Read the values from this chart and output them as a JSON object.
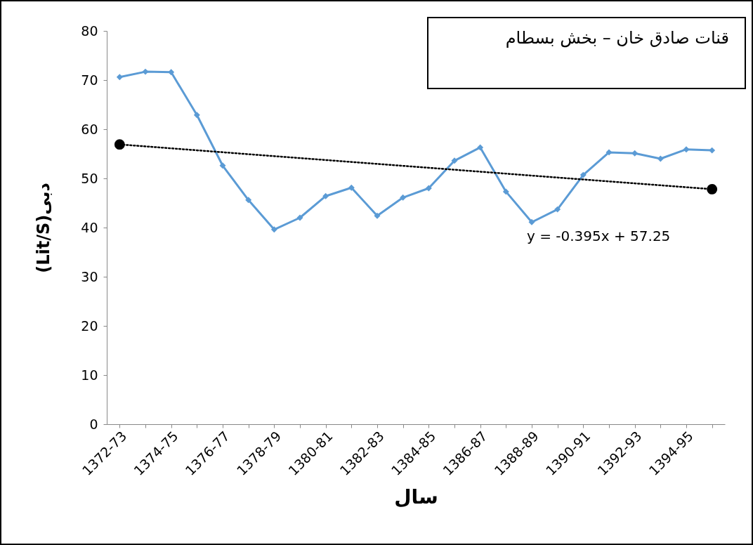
{
  "chart_data": {
    "type": "line",
    "title": "قنات صادق خان – بخش بسطام",
    "xlabel": "سال",
    "ylabel": "(Lit/S)دبی",
    "categories": [
      "1372-73",
      null,
      "1374-75",
      null,
      "1376-77",
      null,
      "1378-79",
      null,
      "1380-81",
      null,
      "1382-83",
      null,
      "1384-85",
      null,
      "1386-87",
      null,
      "1388-89",
      null,
      "1390-91",
      null,
      "1392-93",
      null,
      "1394-95",
      null
    ],
    "series": [
      {
        "color": "#5b9bd5",
        "marker": "diamond",
        "line_style": "solid",
        "values": [
          70.6,
          71.7,
          71.6,
          62.9,
          52.6,
          45.6,
          39.6,
          42,
          46.4,
          48.1,
          42.4,
          46.1,
          48,
          53.6,
          56.3,
          47.3,
          41.1,
          43.7,
          50.7,
          55.3,
          55.1,
          54,
          55.9,
          55.7
        ]
      },
      {
        "color": "#000000",
        "marker": "circle",
        "line_style": "dotted",
        "values": [
          56.9,
          null,
          null,
          null,
          null,
          null,
          null,
          null,
          null,
          null,
          null,
          null,
          null,
          null,
          null,
          null,
          null,
          null,
          null,
          null,
          null,
          null,
          null,
          47.8
        ]
      }
    ],
    "ylim": [
      0,
      80
    ],
    "yticks": [
      0,
      10,
      20,
      30,
      40,
      50,
      60,
      70,
      80
    ],
    "grid": false,
    "annotations": [
      "y = -0.395x + 57.25"
    ]
  }
}
